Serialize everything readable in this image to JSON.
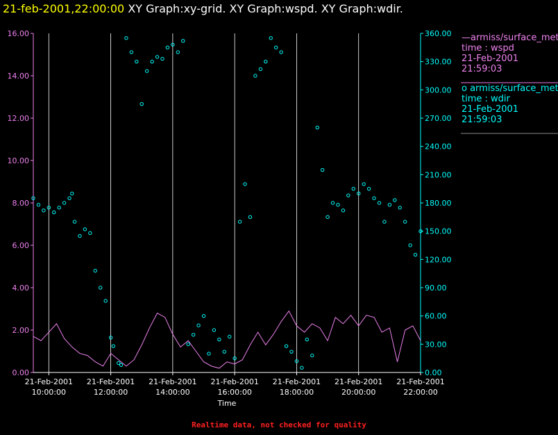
{
  "title": {
    "datetime": "21-feb-2001,22:00:00",
    "graphs": "XY Graph:xy-grid.  XY Graph:wspd.  XY Graph:wdir."
  },
  "footer": "Realtime data, not checked for quality",
  "legend": [
    {
      "symbol": "line",
      "source": "armiss/surface_met",
      "field": "time : wspd",
      "date": "21-Feb-2001",
      "time": "21:59:03",
      "color": "#ee82ee"
    },
    {
      "symbol": "circle",
      "source": "armiss/surface_met",
      "field": "time : wdir",
      "date": "21-Feb-2001",
      "time": "21:59:03",
      "color": "#00ffff"
    }
  ],
  "chart_data": {
    "type": "scatter",
    "xlabel": "Time",
    "x_range": [
      "2001-02-21 09:30",
      "2001-02-21 22:00"
    ],
    "x_ticks": [
      {
        "date": "21-Feb-2001",
        "time": "10:00:00"
      },
      {
        "date": "21-Feb-2001",
        "time": "12:00:00"
      },
      {
        "date": "21-Feb-2001",
        "time": "14:00:00"
      },
      {
        "date": "21-Feb-2001",
        "time": "16:00:00"
      },
      {
        "date": "21-Feb-2001",
        "time": "18:00:00"
      },
      {
        "date": "21-Feb-2001",
        "time": "20:00:00"
      },
      {
        "date": "21-Feb-2001",
        "time": "22:00:00"
      }
    ],
    "grid": "vertical lines",
    "y_left": {
      "range": [
        0,
        16
      ],
      "ticks": [
        "0.00",
        "2.00",
        "4.00",
        "6.00",
        "8.00",
        "10.00",
        "12.00",
        "14.00",
        "16.00"
      ],
      "color": "#ee82ee"
    },
    "y_right": {
      "range": [
        0,
        360
      ],
      "ticks": [
        "0.00",
        "30.00",
        "60.00",
        "90.00",
        "120.00",
        "150.00",
        "180.00",
        "210.00",
        "240.00",
        "270.00",
        "300.00",
        "330.00",
        "360.00"
      ],
      "color": "#00ffff"
    },
    "series": [
      {
        "name": "time : wspd",
        "type": "line",
        "axis": "left",
        "color": "#ee82ee",
        "points": [
          [
            "09:30",
            1.7
          ],
          [
            "09:45",
            1.5
          ],
          [
            "10:00",
            1.9
          ],
          [
            "10:15",
            2.3
          ],
          [
            "10:30",
            1.6
          ],
          [
            "10:45",
            1.2
          ],
          [
            "11:00",
            0.9
          ],
          [
            "11:15",
            0.8
          ],
          [
            "11:30",
            0.5
          ],
          [
            "11:45",
            0.3
          ],
          [
            "12:00",
            0.9
          ],
          [
            "12:15",
            0.6
          ],
          [
            "12:30",
            0.3
          ],
          [
            "12:45",
            0.6
          ],
          [
            "13:00",
            1.3
          ],
          [
            "13:15",
            2.1
          ],
          [
            "13:30",
            2.8
          ],
          [
            "13:45",
            2.6
          ],
          [
            "14:00",
            1.8
          ],
          [
            "14:15",
            1.2
          ],
          [
            "14:30",
            1.5
          ],
          [
            "14:45",
            1.0
          ],
          [
            "15:00",
            0.5
          ],
          [
            "15:15",
            0.3
          ],
          [
            "15:30",
            0.2
          ],
          [
            "15:45",
            0.5
          ],
          [
            "16:00",
            0.4
          ],
          [
            "16:15",
            0.6
          ],
          [
            "16:30",
            1.3
          ],
          [
            "16:45",
            1.9
          ],
          [
            "17:00",
            1.3
          ],
          [
            "17:15",
            1.8
          ],
          [
            "17:30",
            2.4
          ],
          [
            "17:45",
            2.9
          ],
          [
            "18:00",
            2.2
          ],
          [
            "18:15",
            1.9
          ],
          [
            "18:30",
            2.3
          ],
          [
            "18:45",
            2.1
          ],
          [
            "19:00",
            1.5
          ],
          [
            "19:15",
            2.6
          ],
          [
            "19:30",
            2.3
          ],
          [
            "19:45",
            2.7
          ],
          [
            "20:00",
            2.2
          ],
          [
            "20:15",
            2.7
          ],
          [
            "20:30",
            2.6
          ],
          [
            "20:45",
            1.9
          ],
          [
            "21:00",
            2.1
          ],
          [
            "21:15",
            0.5
          ],
          [
            "21:30",
            2.0
          ],
          [
            "21:45",
            2.2
          ],
          [
            "22:00",
            1.5
          ]
        ]
      },
      {
        "name": "time : wdir",
        "type": "scatter",
        "axis": "right",
        "color": "#00ffff",
        "points": [
          [
            "09:30",
            185
          ],
          [
            "09:40",
            178
          ],
          [
            "09:50",
            172
          ],
          [
            "10:00",
            175
          ],
          [
            "10:10",
            170
          ],
          [
            "10:20",
            175
          ],
          [
            "10:30",
            180
          ],
          [
            "10:40",
            185
          ],
          [
            "10:45",
            190
          ],
          [
            "10:50",
            160
          ],
          [
            "11:00",
            145
          ],
          [
            "11:10",
            152
          ],
          [
            "11:20",
            148
          ],
          [
            "11:30",
            108
          ],
          [
            "11:40",
            90
          ],
          [
            "11:50",
            76
          ],
          [
            "12:00",
            37
          ],
          [
            "12:05",
            28
          ],
          [
            "12:15",
            10
          ],
          [
            "12:20",
            8
          ],
          [
            "12:30",
            355
          ],
          [
            "12:40",
            340
          ],
          [
            "12:50",
            330
          ],
          [
            "13:00",
            285
          ],
          [
            "13:10",
            320
          ],
          [
            "13:20",
            330
          ],
          [
            "13:30",
            335
          ],
          [
            "13:40",
            333
          ],
          [
            "13:50",
            345
          ],
          [
            "14:00",
            348
          ],
          [
            "14:10",
            340
          ],
          [
            "14:20",
            352
          ],
          [
            "14:30",
            30
          ],
          [
            "14:40",
            40
          ],
          [
            "14:50",
            50
          ],
          [
            "15:00",
            60
          ],
          [
            "15:10",
            20
          ],
          [
            "15:20",
            45
          ],
          [
            "15:30",
            35
          ],
          [
            "15:40",
            22
          ],
          [
            "15:50",
            38
          ],
          [
            "16:00",
            15
          ],
          [
            "16:10",
            160
          ],
          [
            "16:20",
            200
          ],
          [
            "16:30",
            165
          ],
          [
            "16:40",
            315
          ],
          [
            "16:50",
            322
          ],
          [
            "17:00",
            330
          ],
          [
            "17:10",
            355
          ],
          [
            "17:20",
            345
          ],
          [
            "17:30",
            340
          ],
          [
            "17:40",
            28
          ],
          [
            "17:50",
            22
          ],
          [
            "18:00",
            12
          ],
          [
            "18:10",
            5
          ],
          [
            "18:20",
            35
          ],
          [
            "18:30",
            18
          ],
          [
            "18:40",
            260
          ],
          [
            "18:50",
            215
          ],
          [
            "19:00",
            165
          ],
          [
            "19:10",
            180
          ],
          [
            "19:20",
            178
          ],
          [
            "19:30",
            172
          ],
          [
            "19:40",
            188
          ],
          [
            "19:50",
            195
          ],
          [
            "20:00",
            190
          ],
          [
            "20:10",
            200
          ],
          [
            "20:20",
            195
          ],
          [
            "20:30",
            185
          ],
          [
            "20:40",
            180
          ],
          [
            "20:50",
            160
          ],
          [
            "21:00",
            178
          ],
          [
            "21:10",
            183
          ],
          [
            "21:20",
            175
          ],
          [
            "21:30",
            160
          ],
          [
            "21:40",
            135
          ],
          [
            "21:50",
            125
          ],
          [
            "22:00",
            150
          ]
        ]
      }
    ]
  }
}
